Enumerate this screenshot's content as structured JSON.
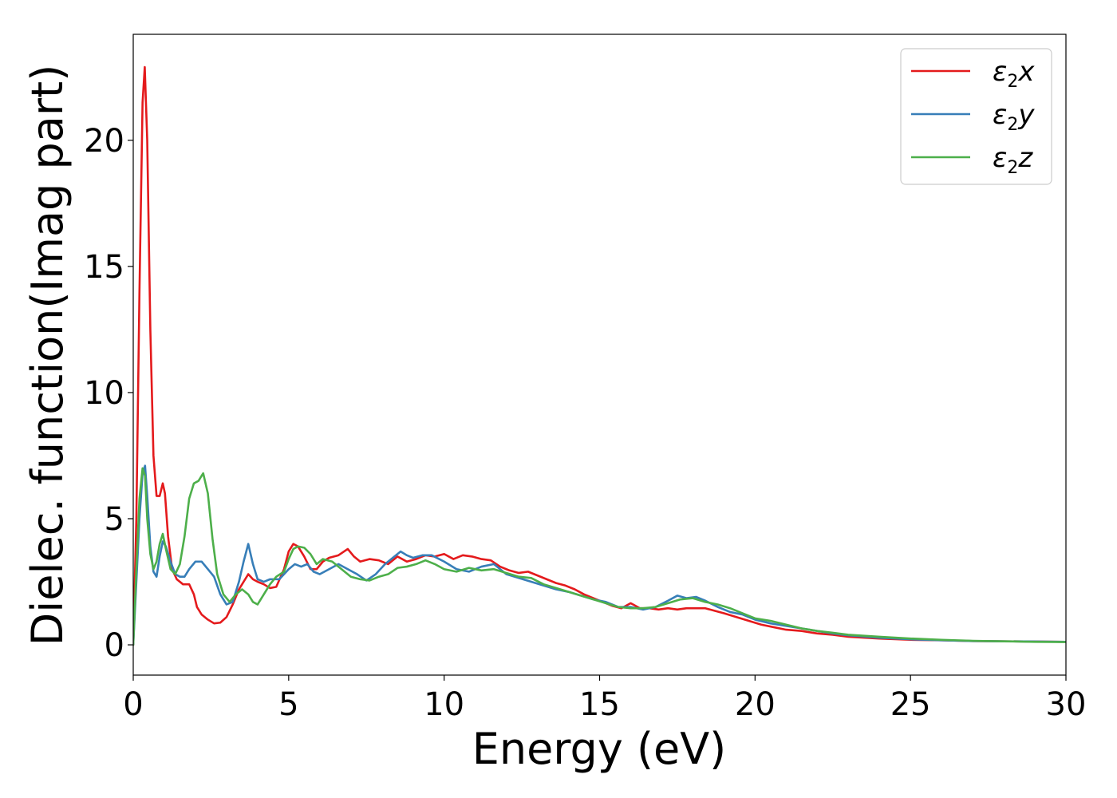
{
  "chart_data": {
    "type": "line",
    "title": "",
    "xlabel": "Energy (eV)",
    "ylabel": "Dielec. function(Imag part)",
    "xlim": [
      0,
      30
    ],
    "ylim": [
      -1.2,
      24.2
    ],
    "xticks": [
      0,
      5,
      10,
      15,
      20,
      25,
      30
    ],
    "yticks": [
      0,
      5,
      10,
      15,
      20
    ],
    "grid": false,
    "legend_position": "top-right",
    "series": [
      {
        "name": "ε2x",
        "legend_base": "ε",
        "legend_sub": "2",
        "legend_suffix": "x",
        "color": "#e41a1c",
        "x": [
          0,
          0.1,
          0.2,
          0.3,
          0.37,
          0.45,
          0.55,
          0.65,
          0.75,
          0.85,
          0.95,
          1.02,
          1.12,
          1.25,
          1.4,
          1.6,
          1.8,
          1.95,
          2.05,
          2.2,
          2.4,
          2.6,
          2.8,
          3.0,
          3.2,
          3.4,
          3.6,
          3.7,
          3.85,
          4.0,
          4.2,
          4.4,
          4.6,
          4.85,
          5.0,
          5.15,
          5.3,
          5.5,
          5.7,
          5.9,
          6.1,
          6.3,
          6.6,
          6.9,
          7.1,
          7.3,
          7.6,
          7.9,
          8.2,
          8.5,
          8.8,
          9.1,
          9.4,
          9.7,
          10.0,
          10.3,
          10.6,
          10.9,
          11.2,
          11.5,
          11.8,
          12.1,
          12.4,
          12.7,
          13.0,
          13.3,
          13.6,
          13.9,
          14.2,
          14.5,
          14.8,
          15.1,
          15.4,
          15.7,
          16.0,
          16.3,
          16.6,
          16.9,
          17.2,
          17.5,
          17.8,
          18.1,
          18.4,
          18.7,
          19.0,
          19.4,
          19.8,
          20.2,
          20.6,
          21.0,
          21.5,
          22.0,
          22.5,
          23.0,
          24.0,
          25.0,
          26.0,
          27.0,
          28.0,
          29.0,
          30.0
        ],
        "y": [
          0,
          5.0,
          14.0,
          21.5,
          22.9,
          20.0,
          12.5,
          7.5,
          5.9,
          5.9,
          6.4,
          6.0,
          4.3,
          3.0,
          2.6,
          2.4,
          2.4,
          2.0,
          1.5,
          1.2,
          1.0,
          0.85,
          0.88,
          1.1,
          1.6,
          2.2,
          2.6,
          2.8,
          2.6,
          2.5,
          2.4,
          2.25,
          2.3,
          3.0,
          3.7,
          4.0,
          3.9,
          3.5,
          3.0,
          3.0,
          3.3,
          3.45,
          3.55,
          3.8,
          3.5,
          3.3,
          3.4,
          3.35,
          3.2,
          3.5,
          3.3,
          3.4,
          3.55,
          3.5,
          3.6,
          3.4,
          3.55,
          3.5,
          3.4,
          3.35,
          3.1,
          2.95,
          2.85,
          2.9,
          2.75,
          2.6,
          2.45,
          2.35,
          2.2,
          2.0,
          1.85,
          1.7,
          1.55,
          1.45,
          1.65,
          1.45,
          1.45,
          1.4,
          1.45,
          1.4,
          1.45,
          1.45,
          1.45,
          1.35,
          1.25,
          1.1,
          0.95,
          0.8,
          0.7,
          0.6,
          0.55,
          0.45,
          0.4,
          0.32,
          0.25,
          0.2,
          0.18,
          0.15,
          0.14,
          0.13,
          0.12
        ]
      },
      {
        "name": "ε2y",
        "legend_base": "ε",
        "legend_sub": "2",
        "legend_suffix": "y",
        "color": "#377eb8",
        "x": [
          0,
          0.1,
          0.2,
          0.3,
          0.38,
          0.45,
          0.55,
          0.65,
          0.75,
          0.85,
          0.95,
          1.05,
          1.2,
          1.35,
          1.5,
          1.65,
          1.8,
          2.0,
          2.2,
          2.4,
          2.6,
          2.8,
          3.0,
          3.2,
          3.4,
          3.55,
          3.7,
          3.85,
          4.0,
          4.2,
          4.4,
          4.7,
          5.0,
          5.2,
          5.4,
          5.6,
          5.8,
          6.0,
          6.3,
          6.6,
          6.9,
          7.2,
          7.5,
          7.8,
          8.1,
          8.4,
          8.6,
          8.8,
          9.0,
          9.3,
          9.6,
          10.0,
          10.4,
          10.8,
          11.2,
          11.6,
          12.0,
          12.4,
          12.8,
          13.2,
          13.6,
          14.0,
          14.4,
          14.8,
          15.2,
          15.6,
          16.0,
          16.4,
          16.8,
          17.2,
          17.5,
          17.8,
          18.1,
          18.4,
          18.8,
          19.2,
          19.6,
          20.0,
          20.5,
          21.0,
          21.5,
          22.0,
          22.5,
          23.0,
          24.0,
          25.0,
          26.0,
          27.0,
          28.0,
          29.0,
          30.0
        ],
        "y": [
          0,
          2.5,
          5.0,
          6.8,
          7.1,
          5.9,
          3.9,
          2.9,
          2.7,
          3.5,
          4.1,
          3.9,
          3.3,
          2.8,
          2.7,
          2.7,
          3.0,
          3.3,
          3.3,
          3.0,
          2.7,
          2.0,
          1.6,
          1.7,
          2.5,
          3.3,
          4.0,
          3.2,
          2.6,
          2.5,
          2.6,
          2.6,
          3.0,
          3.2,
          3.1,
          3.2,
          2.9,
          2.8,
          3.0,
          3.2,
          3.0,
          2.8,
          2.55,
          2.8,
          3.2,
          3.5,
          3.7,
          3.55,
          3.45,
          3.55,
          3.55,
          3.3,
          3.0,
          2.9,
          3.1,
          3.2,
          2.8,
          2.65,
          2.5,
          2.35,
          2.2,
          2.1,
          1.95,
          1.8,
          1.7,
          1.5,
          1.5,
          1.4,
          1.5,
          1.75,
          1.95,
          1.85,
          1.9,
          1.75,
          1.5,
          1.3,
          1.2,
          1.0,
          0.85,
          0.75,
          0.65,
          0.55,
          0.45,
          0.38,
          0.28,
          0.22,
          0.18,
          0.15,
          0.14,
          0.13,
          0.12
        ]
      },
      {
        "name": "ε2z",
        "legend_base": "ε",
        "legend_sub": "2",
        "legend_suffix": "z",
        "color": "#4daf4a",
        "x": [
          0,
          0.1,
          0.2,
          0.3,
          0.38,
          0.45,
          0.55,
          0.65,
          0.75,
          0.85,
          0.95,
          1.05,
          1.2,
          1.35,
          1.5,
          1.65,
          1.8,
          1.95,
          2.1,
          2.25,
          2.4,
          2.55,
          2.7,
          2.9,
          3.1,
          3.3,
          3.5,
          3.7,
          3.85,
          4.0,
          4.2,
          4.4,
          4.6,
          4.85,
          5.0,
          5.15,
          5.3,
          5.5,
          5.7,
          5.9,
          6.1,
          6.4,
          6.7,
          7.0,
          7.3,
          7.6,
          7.9,
          8.2,
          8.5,
          8.8,
          9.1,
          9.4,
          9.7,
          10.0,
          10.4,
          10.8,
          11.2,
          11.6,
          12.0,
          12.4,
          12.8,
          13.2,
          13.6,
          14.0,
          14.4,
          14.8,
          15.2,
          15.6,
          16.0,
          16.4,
          16.8,
          17.2,
          17.6,
          18.0,
          18.4,
          18.8,
          19.2,
          19.6,
          20.0,
          20.5,
          21.0,
          21.5,
          22.0,
          22.5,
          23.0,
          24.0,
          25.0,
          26.0,
          27.0,
          28.0,
          29.0,
          30.0
        ],
        "y": [
          0,
          3.0,
          5.8,
          7.0,
          6.7,
          5.0,
          3.6,
          3.0,
          3.3,
          4.0,
          4.4,
          3.8,
          3.0,
          2.8,
          3.2,
          4.3,
          5.8,
          6.4,
          6.5,
          6.8,
          6.0,
          4.2,
          2.8,
          2.0,
          1.7,
          2.0,
          2.2,
          2.0,
          1.7,
          1.6,
          2.0,
          2.4,
          2.7,
          2.9,
          3.4,
          3.8,
          3.9,
          3.85,
          3.6,
          3.2,
          3.4,
          3.3,
          3.0,
          2.7,
          2.6,
          2.55,
          2.7,
          2.8,
          3.05,
          3.1,
          3.2,
          3.35,
          3.2,
          3.0,
          2.9,
          3.05,
          2.95,
          3.0,
          2.85,
          2.7,
          2.65,
          2.4,
          2.25,
          2.1,
          1.95,
          1.8,
          1.65,
          1.5,
          1.45,
          1.45,
          1.5,
          1.65,
          1.8,
          1.85,
          1.7,
          1.6,
          1.45,
          1.25,
          1.05,
          0.95,
          0.8,
          0.65,
          0.55,
          0.48,
          0.4,
          0.32,
          0.25,
          0.2,
          0.16,
          0.14,
          0.12,
          0.11
        ]
      }
    ]
  }
}
